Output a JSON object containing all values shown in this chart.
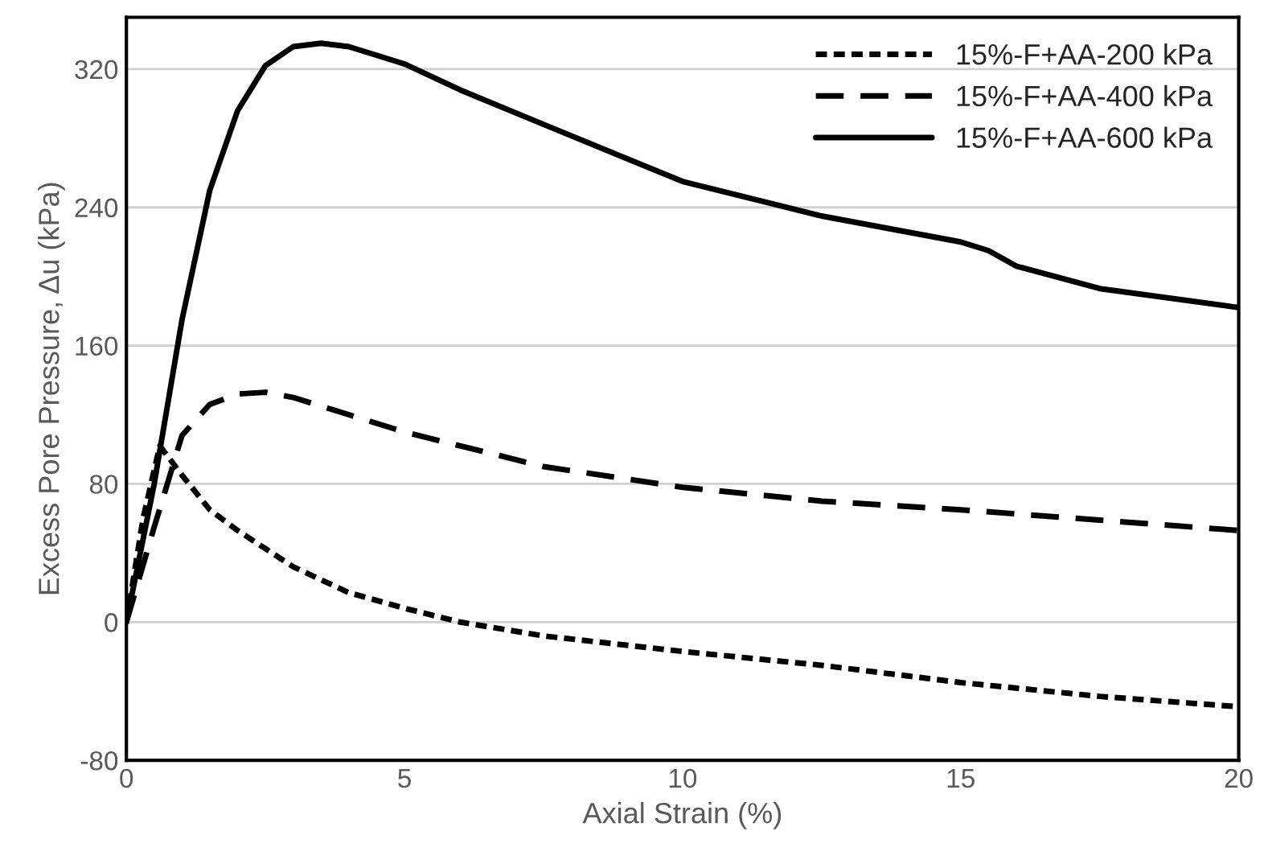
{
  "chart_data": {
    "type": "line",
    "xlabel": "Axial Strain (%)",
    "ylabel": "Excess Pore Pressure, Δu (kPa)",
    "xlim": [
      0,
      20
    ],
    "xticks": [
      0,
      5,
      10,
      15,
      20
    ],
    "ylim": [
      -80,
      350
    ],
    "yticks": [
      -80,
      0,
      80,
      160,
      240,
      320
    ],
    "grid": "y",
    "legend": "top right",
    "marker": "none",
    "series": [
      {
        "name": "15%-F+AA-200 kPa",
        "color": "#000000",
        "line_style": "dotted",
        "x": [
          0,
          0.3,
          0.6,
          1,
          1.5,
          2,
          3,
          4,
          5,
          6,
          7.5,
          10,
          12.5,
          15,
          17.5,
          20
        ],
        "values": [
          0,
          60,
          102,
          85,
          65,
          53,
          32,
          17,
          8,
          0,
          -8,
          -17,
          -25,
          -35,
          -43,
          -49
        ]
      },
      {
        "name": "15%-F+AA-400 kPa",
        "color": "#000000",
        "line_style": "dashed",
        "x": [
          0,
          0.5,
          1,
          1.5,
          2,
          2.5,
          3,
          4,
          5,
          7.5,
          10,
          12.5,
          15,
          17.5,
          20
        ],
        "values": [
          0,
          55,
          108,
          126,
          132,
          133,
          130,
          120,
          110,
          90,
          78,
          70,
          65,
          59,
          53
        ]
      },
      {
        "name": "15%-F+AA-600 kPa",
        "color": "#000000",
        "line_style": "solid",
        "x": [
          0,
          0.5,
          1,
          1.5,
          2,
          2.5,
          3,
          3.5,
          4,
          5,
          6,
          7.5,
          10,
          12.5,
          15,
          15.5,
          16,
          17.5,
          20
        ],
        "values": [
          0,
          80,
          175,
          250,
          296,
          322,
          333,
          335,
          333,
          323,
          308,
          288,
          255,
          235,
          220,
          215,
          206,
          193,
          182
        ]
      }
    ]
  }
}
